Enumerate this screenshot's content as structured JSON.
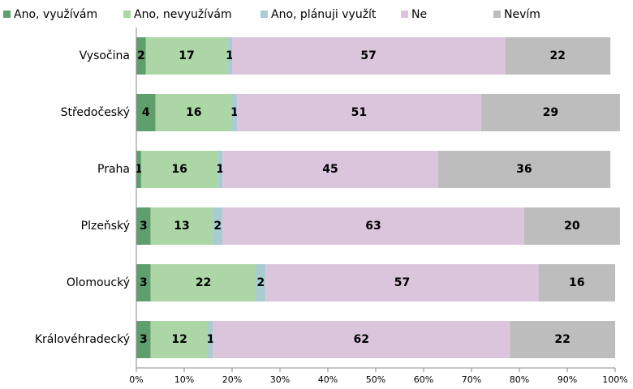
{
  "chart_data": {
    "type": "stacked-barh",
    "categories": [
      "Vysočina",
      "Středočeský",
      "Praha",
      "Plzeňský",
      "Olomoucký",
      "Královéhradecký"
    ],
    "series": [
      {
        "name": "Ano, využívám",
        "color": "#5f9f6e",
        "values": [
          2,
          4,
          1,
          3,
          3,
          3
        ]
      },
      {
        "name": "Ano, nevyužívám",
        "color": "#acd6a6",
        "values": [
          17,
          16,
          16,
          13,
          22,
          12
        ]
      },
      {
        "name": "Ano, plánuji využít",
        "color": "#a9cbd2",
        "values": [
          1,
          1,
          1,
          2,
          2,
          1
        ]
      },
      {
        "name": "Ne",
        "color": "#dbc5dd",
        "values": [
          57,
          51,
          45,
          63,
          57,
          62
        ]
      },
      {
        "name": "Nevím",
        "color": "#bdbdbd",
        "values": [
          22,
          29,
          36,
          20,
          16,
          22
        ]
      }
    ],
    "xlim": [
      0,
      100
    ],
    "xticks": [
      {
        "value": 0,
        "label": "0%"
      },
      {
        "value": 10,
        "label": "10%"
      },
      {
        "value": 20,
        "label": "20%"
      },
      {
        "value": 30,
        "label": "30%"
      },
      {
        "value": 40,
        "label": "40%"
      },
      {
        "value": 50,
        "label": "50%"
      },
      {
        "value": 60,
        "label": "60%"
      },
      {
        "value": 70,
        "label": "70%"
      },
      {
        "value": 80,
        "label": "80%"
      },
      {
        "value": 90,
        "label": "90%"
      },
      {
        "value": 100,
        "label": "100%"
      }
    ],
    "legend": "top"
  }
}
